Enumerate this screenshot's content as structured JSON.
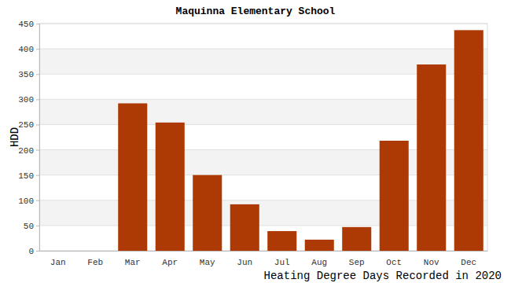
{
  "chart_data": {
    "type": "bar",
    "title": "Maquinna Elementary School",
    "x_label": "Heating Degree Days Recorded in 2020",
    "y_label": "HDD",
    "categories": [
      "Jan",
      "Feb",
      "Mar",
      "Apr",
      "May",
      "Jun",
      "Jul",
      "Aug",
      "Sep",
      "Oct",
      "Nov",
      "Dec"
    ],
    "values": [
      0,
      0,
      292,
      254,
      150,
      92,
      39,
      22,
      47,
      218,
      369,
      437
    ],
    "color": "#ad3a04",
    "ylim": [
      0,
      450
    ],
    "yticks": [
      0,
      50,
      100,
      150,
      200,
      250,
      300,
      350,
      400,
      450
    ],
    "grid": true
  }
}
